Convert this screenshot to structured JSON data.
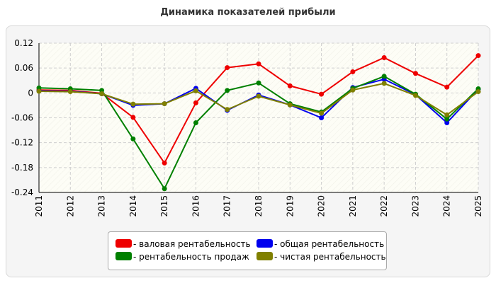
{
  "chart_data": {
    "type": "line",
    "title": "Динамика показателей прибыли",
    "xlabel": "",
    "ylabel": "",
    "categories": [
      "2011",
      "2012",
      "2013",
      "2014",
      "2015",
      "2016",
      "2017",
      "2018",
      "2019",
      "2020",
      "2021",
      "2022",
      "2023",
      "2024",
      "2025"
    ],
    "y_ticks": [
      "0.12",
      "0.06",
      "0",
      "-0.06",
      "-0.12",
      "-0.18",
      "-0.24"
    ],
    "ylim": [
      -0.24,
      0.12
    ],
    "grid": true,
    "legend_position": "bottom",
    "series": [
      {
        "name": "- валовая рентабельность",
        "color": "#ee0000",
        "values": [
          0.007,
          0.006,
          -0.001,
          -0.059,
          -0.169,
          -0.024,
          0.061,
          0.07,
          0.017,
          -0.003,
          0.051,
          0.085,
          0.047,
          0.014,
          0.09
        ]
      },
      {
        "name": "- общая рентабельность",
        "color": "#0000ee",
        "values": [
          0.005,
          0.004,
          -0.002,
          -0.03,
          -0.026,
          0.011,
          -0.042,
          -0.005,
          -0.029,
          -0.06,
          0.013,
          0.033,
          -0.004,
          -0.072,
          0.009
        ]
      },
      {
        "name": "- рентабельность продаж",
        "color": "#008000",
        "values": [
          0.012,
          0.01,
          0.006,
          -0.111,
          -0.231,
          -0.072,
          0.006,
          0.024,
          -0.026,
          -0.046,
          0.011,
          0.04,
          -0.003,
          -0.063,
          0.01
        ]
      },
      {
        "name": "- чистая рентабельность",
        "color": "#808000",
        "values": [
          0.004,
          0.003,
          -0.002,
          -0.027,
          -0.026,
          0.005,
          -0.04,
          -0.008,
          -0.029,
          -0.049,
          0.007,
          0.023,
          -0.006,
          -0.053,
          0.003
        ]
      }
    ]
  }
}
